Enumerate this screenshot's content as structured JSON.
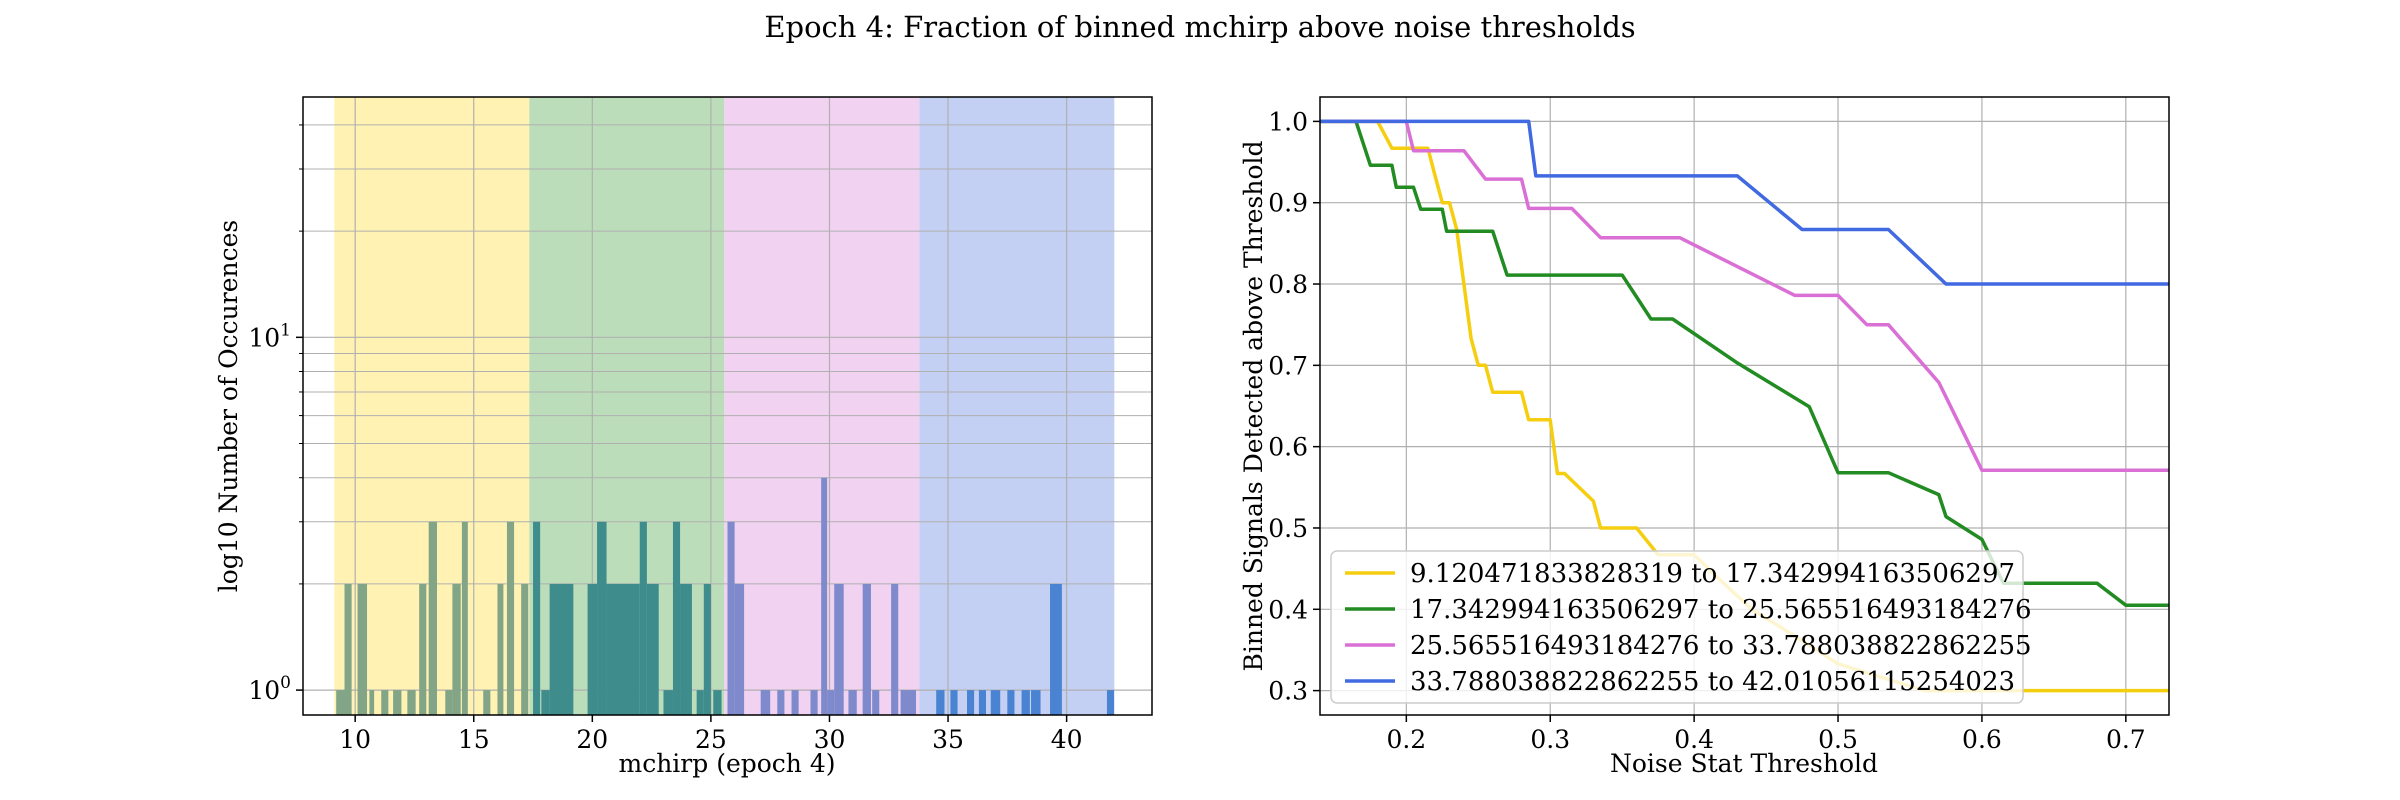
{
  "figure": {
    "title": "Epoch 4: Fraction of binned mchirp above noise thresholds"
  },
  "chart_data": [
    {
      "type": "bar",
      "subtype": "histogram",
      "xlabel": "mchirp (epoch 4)",
      "ylabel": "log10 Number of Occurences",
      "xlim": [
        7.8,
        43.6
      ],
      "ylim": [
        0.85,
        48
      ],
      "yscale": "log",
      "xticks": [
        10,
        15,
        20,
        25,
        30,
        35,
        40
      ],
      "yticks": [
        {
          "value": 1,
          "base": "10",
          "exp": "0"
        },
        {
          "value": 10,
          "base": "10",
          "exp": "1"
        }
      ],
      "grid": true,
      "bands": [
        {
          "x0": 9.12,
          "x1": 17.343,
          "color": "#FFF2B3"
        },
        {
          "x0": 17.343,
          "x1": 25.566,
          "color": "#BCDDBA"
        },
        {
          "x0": 25.566,
          "x1": 33.788,
          "color": "#F2D2F1"
        },
        {
          "x0": 33.788,
          "x1": 42.011,
          "color": "#C4D0F3"
        }
      ],
      "bar_colors": [
        "#82A588",
        "#3E8C8C",
        "#7E8ACB",
        "#4A83D2"
      ],
      "bins": [
        {
          "x": 9.2,
          "w": 0.35,
          "v": 1
        },
        {
          "x": 9.55,
          "w": 0.3,
          "v": 2
        },
        {
          "x": 10.1,
          "w": 0.4,
          "v": 2
        },
        {
          "x": 10.6,
          "w": 0.2,
          "v": 1
        },
        {
          "x": 11.1,
          "w": 0.3,
          "v": 1
        },
        {
          "x": 11.6,
          "w": 0.35,
          "v": 1
        },
        {
          "x": 12.2,
          "w": 0.35,
          "v": 1
        },
        {
          "x": 12.7,
          "w": 0.3,
          "v": 2
        },
        {
          "x": 13.1,
          "w": 0.35,
          "v": 3
        },
        {
          "x": 13.8,
          "w": 0.3,
          "v": 1
        },
        {
          "x": 14.1,
          "w": 0.35,
          "v": 2
        },
        {
          "x": 14.5,
          "w": 0.25,
          "v": 3
        },
        {
          "x": 15.4,
          "w": 0.3,
          "v": 1
        },
        {
          "x": 16.0,
          "w": 0.25,
          "v": 2
        },
        {
          "x": 16.4,
          "w": 0.3,
          "v": 3
        },
        {
          "x": 17.0,
          "w": 0.3,
          "v": 2
        },
        {
          "x": 17.5,
          "w": 0.3,
          "v": 3
        },
        {
          "x": 17.85,
          "w": 0.35,
          "v": 1
        },
        {
          "x": 18.2,
          "w": 1.0,
          "v": 2
        },
        {
          "x": 19.8,
          "w": 0.4,
          "v": 2
        },
        {
          "x": 20.2,
          "w": 0.4,
          "v": 3
        },
        {
          "x": 20.6,
          "w": 1.4,
          "v": 2
        },
        {
          "x": 22.0,
          "w": 0.3,
          "v": 3
        },
        {
          "x": 22.3,
          "w": 0.5,
          "v": 2
        },
        {
          "x": 23.0,
          "w": 0.4,
          "v": 1
        },
        {
          "x": 23.4,
          "w": 0.3,
          "v": 3
        },
        {
          "x": 23.7,
          "w": 0.5,
          "v": 2
        },
        {
          "x": 24.4,
          "w": 0.3,
          "v": 1
        },
        {
          "x": 24.7,
          "w": 0.3,
          "v": 2
        },
        {
          "x": 25.1,
          "w": 0.35,
          "v": 1
        },
        {
          "x": 25.7,
          "w": 0.3,
          "v": 3
        },
        {
          "x": 26.0,
          "w": 0.4,
          "v": 2
        },
        {
          "x": 27.1,
          "w": 0.4,
          "v": 1
        },
        {
          "x": 27.8,
          "w": 0.3,
          "v": 1
        },
        {
          "x": 28.4,
          "w": 0.3,
          "v": 1
        },
        {
          "x": 29.2,
          "w": 0.3,
          "v": 1
        },
        {
          "x": 29.65,
          "w": 0.25,
          "v": 4
        },
        {
          "x": 29.9,
          "w": 0.3,
          "v": 1
        },
        {
          "x": 30.2,
          "w": 0.4,
          "v": 2
        },
        {
          "x": 30.8,
          "w": 0.35,
          "v": 1
        },
        {
          "x": 31.4,
          "w": 0.35,
          "v": 2
        },
        {
          "x": 31.8,
          "w": 0.3,
          "v": 1
        },
        {
          "x": 32.6,
          "w": 0.3,
          "v": 2
        },
        {
          "x": 33.0,
          "w": 0.35,
          "v": 1
        },
        {
          "x": 33.3,
          "w": 0.35,
          "v": 1
        },
        {
          "x": 34.5,
          "w": 0.35,
          "v": 1
        },
        {
          "x": 35.1,
          "w": 0.3,
          "v": 1
        },
        {
          "x": 35.8,
          "w": 0.3,
          "v": 1
        },
        {
          "x": 36.3,
          "w": 0.3,
          "v": 1
        },
        {
          "x": 36.8,
          "w": 0.4,
          "v": 1
        },
        {
          "x": 37.5,
          "w": 0.3,
          "v": 1
        },
        {
          "x": 38.1,
          "w": 0.35,
          "v": 1
        },
        {
          "x": 38.5,
          "w": 0.4,
          "v": 1
        },
        {
          "x": 39.3,
          "w": 0.5,
          "v": 2
        },
        {
          "x": 41.7,
          "w": 0.3,
          "v": 1
        }
      ]
    },
    {
      "type": "line",
      "xlabel": "Noise Stat Threshold",
      "ylabel": "Binned Signals Detected above Threshold",
      "xlim": [
        0.14,
        0.73
      ],
      "ylim": [
        0.27,
        1.03
      ],
      "xticks": [
        0.2,
        0.3,
        0.4,
        0.5,
        0.6,
        0.7
      ],
      "yticks": [
        0.3,
        0.4,
        0.5,
        0.6,
        0.7,
        0.8,
        0.9,
        1.0
      ],
      "grid": true,
      "legend_position": "lower-left",
      "series": [
        {
          "name": "9.120471833828319 to 17.342994163506297",
          "color": "#F5CE10",
          "points": [
            [
              0.14,
              1.0
            ],
            [
              0.18,
              1.0
            ],
            [
              0.19,
              0.967
            ],
            [
              0.215,
              0.967
            ],
            [
              0.22,
              0.933
            ],
            [
              0.225,
              0.9
            ],
            [
              0.23,
              0.9
            ],
            [
              0.235,
              0.867
            ],
            [
              0.24,
              0.8
            ],
            [
              0.245,
              0.733
            ],
            [
              0.25,
              0.7
            ],
            [
              0.255,
              0.7
            ],
            [
              0.26,
              0.667
            ],
            [
              0.28,
              0.667
            ],
            [
              0.285,
              0.633
            ],
            [
              0.3,
              0.633
            ],
            [
              0.305,
              0.567
            ],
            [
              0.31,
              0.567
            ],
            [
              0.33,
              0.533
            ],
            [
              0.335,
              0.5
            ],
            [
              0.36,
              0.5
            ],
            [
              0.375,
              0.467
            ],
            [
              0.4,
              0.467
            ],
            [
              0.42,
              0.433
            ],
            [
              0.44,
              0.4
            ],
            [
              0.47,
              0.367
            ],
            [
              0.5,
              0.333
            ],
            [
              0.56,
              0.3
            ],
            [
              0.73,
              0.3
            ]
          ]
        },
        {
          "name": "17.342994163506297 to 25.565516493184276",
          "color": "#228B22",
          "points": [
            [
              0.14,
              1.0
            ],
            [
              0.165,
              1.0
            ],
            [
              0.175,
              0.946
            ],
            [
              0.19,
              0.946
            ],
            [
              0.193,
              0.919
            ],
            [
              0.205,
              0.919
            ],
            [
              0.21,
              0.892
            ],
            [
              0.225,
              0.892
            ],
            [
              0.228,
              0.865
            ],
            [
              0.26,
              0.865
            ],
            [
              0.27,
              0.811
            ],
            [
              0.35,
              0.811
            ],
            [
              0.36,
              0.784
            ],
            [
              0.37,
              0.757
            ],
            [
              0.385,
              0.757
            ],
            [
              0.43,
              0.703
            ],
            [
              0.48,
              0.649
            ],
            [
              0.5,
              0.568
            ],
            [
              0.535,
              0.568
            ],
            [
              0.57,
              0.541
            ],
            [
              0.575,
              0.514
            ],
            [
              0.6,
              0.486
            ],
            [
              0.615,
              0.432
            ],
            [
              0.68,
              0.432
            ],
            [
              0.7,
              0.405
            ],
            [
              0.73,
              0.405
            ]
          ]
        },
        {
          "name": "25.565516493184276 to 33.788038822862255",
          "color": "#DA70D6",
          "points": [
            [
              0.14,
              1.0
            ],
            [
              0.2,
              1.0
            ],
            [
              0.205,
              0.964
            ],
            [
              0.24,
              0.964
            ],
            [
              0.255,
              0.929
            ],
            [
              0.28,
              0.929
            ],
            [
              0.285,
              0.893
            ],
            [
              0.315,
              0.893
            ],
            [
              0.335,
              0.857
            ],
            [
              0.39,
              0.857
            ],
            [
              0.47,
              0.786
            ],
            [
              0.5,
              0.786
            ],
            [
              0.52,
              0.75
            ],
            [
              0.535,
              0.75
            ],
            [
              0.57,
              0.679
            ],
            [
              0.58,
              0.643
            ],
            [
              0.6,
              0.571
            ],
            [
              0.73,
              0.571
            ]
          ]
        },
        {
          "name": "33.788038822862255 to 42.01056115254023",
          "color": "#4169E1",
          "points": [
            [
              0.14,
              1.0
            ],
            [
              0.285,
              1.0
            ],
            [
              0.29,
              0.933
            ],
            [
              0.43,
              0.933
            ],
            [
              0.475,
              0.867
            ],
            [
              0.535,
              0.867
            ],
            [
              0.575,
              0.8
            ],
            [
              0.73,
              0.8
            ]
          ]
        }
      ]
    }
  ]
}
